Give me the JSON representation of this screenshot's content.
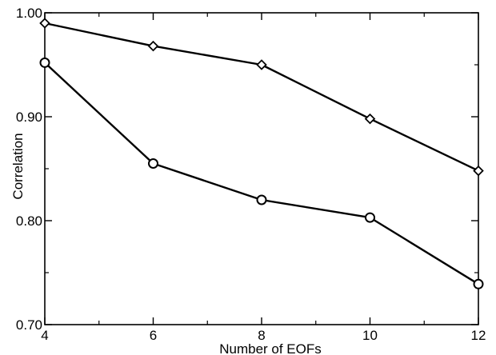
{
  "chart_data": {
    "type": "line",
    "title": "",
    "xlabel": "Number of EOFs",
    "ylabel": "Correlation",
    "x": [
      4,
      6,
      8,
      10,
      12
    ],
    "xlim": [
      4,
      12
    ],
    "ylim": [
      0.7,
      1.0
    ],
    "x_ticks": [
      "4",
      "6",
      "8",
      "10",
      "12"
    ],
    "y_ticks": [
      "0.70",
      "0.80",
      "0.90",
      "1.00"
    ],
    "grid": false,
    "legend": "none",
    "series": [
      {
        "marker": "diamond",
        "values": [
          0.99,
          0.968,
          0.95,
          0.898,
          0.848
        ]
      },
      {
        "marker": "circle",
        "values": [
          0.952,
          0.855,
          0.82,
          0.803,
          0.739
        ]
      }
    ]
  }
}
